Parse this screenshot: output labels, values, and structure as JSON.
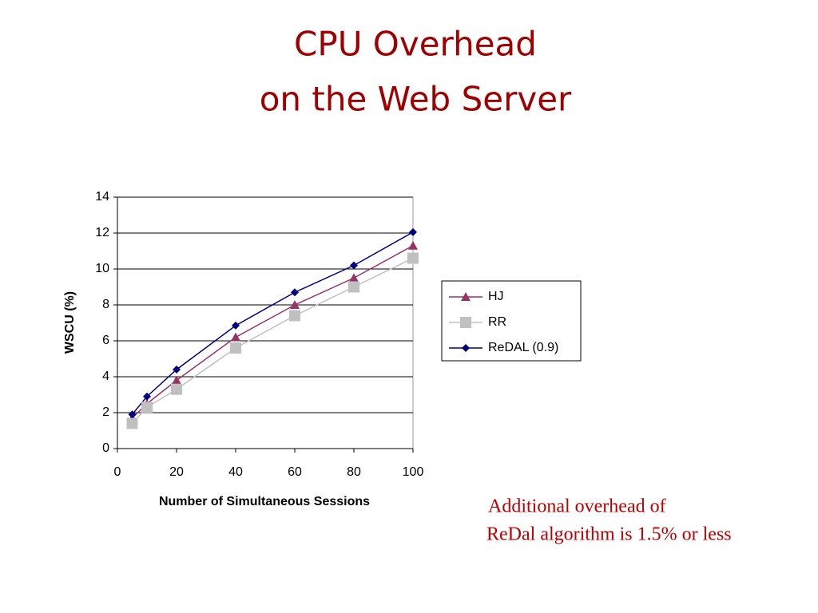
{
  "chart_data": {
    "type": "line",
    "title": [
      "CPU Overhead",
      "on the Web Server"
    ],
    "x_label": "Number of Simultaneous Sessions",
    "y_label": "WSCU (%)",
    "x": [
      5,
      10,
      20,
      40,
      60,
      80,
      100
    ],
    "series": [
      {
        "name": "HJ",
        "color": "#993366",
        "marker": "triangle",
        "values": [
          1.7,
          2.5,
          3.8,
          6.2,
          8.0,
          9.5,
          11.3
        ]
      },
      {
        "name": "RR",
        "color": "#c0c0c0",
        "marker": "square",
        "values": [
          1.4,
          2.3,
          3.3,
          5.6,
          7.4,
          9.0,
          10.6
        ]
      },
      {
        "name": "ReDAL (0.9)",
        "color": "#000080",
        "marker": "diamond",
        "values": [
          1.9,
          2.9,
          4.4,
          6.85,
          8.7,
          10.2,
          12.05
        ]
      }
    ],
    "xlim": [
      0,
      100
    ],
    "xticks": [
      0,
      20,
      40,
      60,
      80,
      100
    ],
    "ylim": [
      0,
      14
    ],
    "yticks": [
      0,
      2,
      4,
      6,
      8,
      10,
      12,
      14
    ],
    "grid": true,
    "legend": "right",
    "annotation": [
      "Additional overhead of",
      "ReDal algorithm is 1.5% or less"
    ]
  }
}
